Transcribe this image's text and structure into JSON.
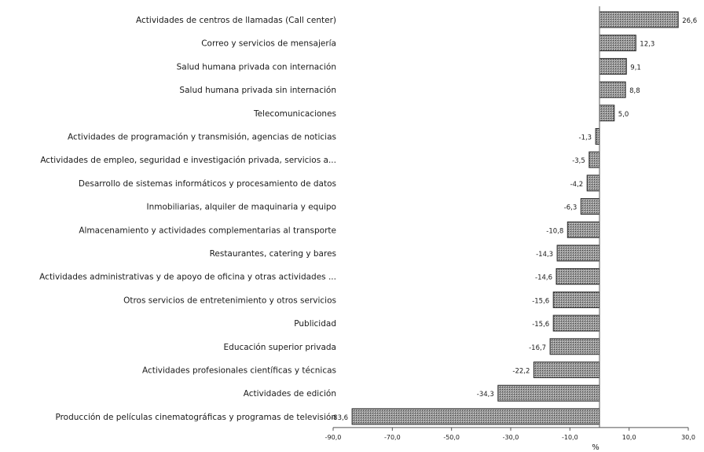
{
  "chart_data": {
    "type": "bar",
    "orientation": "horizontal",
    "title": "",
    "xlabel": "%",
    "ylabel": "",
    "xlim": [
      -90,
      30
    ],
    "ticks": [
      {
        "value": -90,
        "label": "-90,0"
      },
      {
        "value": -70,
        "label": "-70,0"
      },
      {
        "value": -50,
        "label": "-50,0"
      },
      {
        "value": -30,
        "label": "-30,0"
      },
      {
        "value": -10,
        "label": "-10,0"
      },
      {
        "value": 10,
        "label": "10,0"
      },
      {
        "value": 30,
        "label": "30,0"
      }
    ],
    "grid": false,
    "legend": "none",
    "colors": {
      "bar_fill": "#8a8a8a",
      "bar_stroke": "#2a2a2a",
      "text": "#1a1a1a"
    },
    "categories": [
      "Actividades de centros de llamadas (Call center)",
      "Correo y servicios de mensajería",
      "Salud humana privada con internación",
      "Salud humana privada sin internación",
      "Telecomunicaciones",
      "Actividades de programación y transmisión, agencias de noticias",
      "Actividades de empleo, seguridad e investigación privada, servicios a...",
      "Desarrollo de sistemas informáticos y procesamiento de datos",
      "Inmobiliarias, alquiler de maquinaria y equipo",
      "Almacenamiento y actividades complementarias al transporte",
      "Restaurantes, catering y bares",
      "Actividades administrativas y de apoyo de oficina y otras actividades ...",
      "Otros servicios de entretenimiento y otros servicios",
      "Publicidad",
      "Educación superior privada",
      "Actividades profesionales científicas y técnicas",
      "Actividades de edición",
      "Producción de películas cinematográficas y programas de televisión"
    ],
    "values": [
      26.6,
      12.3,
      9.1,
      8.8,
      5.0,
      -1.3,
      -3.5,
      -4.2,
      -6.3,
      -10.8,
      -14.3,
      -14.6,
      -15.6,
      -15.6,
      -16.7,
      -22.2,
      -34.3,
      -83.6
    ],
    "value_labels": [
      "26,6",
      "12,3",
      "9,1",
      "8,8",
      "5,0",
      "-1,3",
      "-3,5",
      "-4,2",
      "-6,3",
      "-10,8",
      "-14,3",
      "-14,6",
      "-15,6",
      "-15,6",
      "-16,7",
      "-22,2",
      "-34,3",
      "-83,6"
    ]
  }
}
